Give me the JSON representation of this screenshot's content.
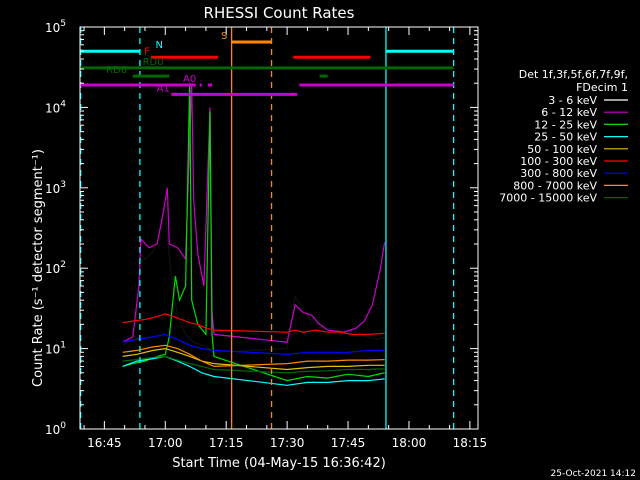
{
  "chart_data": {
    "type": "line",
    "title": "RHESSI Count Rates",
    "xlabel": "Start Time (04-May-15 16:36:42)",
    "ylabel": "Count Rate (s⁻¹ detector segment⁻¹)",
    "y_scale": "log",
    "xlim": [
      "16:39:00",
      "18:17:00"
    ],
    "ylim": [
      1,
      100000
    ],
    "x_ticks": [
      "16:45",
      "17:00",
      "17:15",
      "17:30",
      "17:45",
      "18:00",
      "18:15"
    ],
    "y_ticks": [
      {
        "base": "10",
        "exp": "0"
      },
      {
        "base": "10",
        "exp": "1"
      },
      {
        "base": "10",
        "exp": "2"
      },
      {
        "base": "10",
        "exp": "3"
      },
      {
        "base": "10",
        "exp": "4"
      },
      {
        "base": "10",
        "exp": "5"
      }
    ],
    "legend": {
      "placement": "right",
      "header": [
        "Det 1f,3f,5f,6f,7f,9f,",
        "FDecim 1"
      ],
      "entries": [
        {
          "label": "3 - 6 keV",
          "color": "#000000"
        },
        {
          "label": "6 - 12 keV",
          "color": "#cc00cc"
        },
        {
          "label": "12 - 25 keV",
          "color": "#00dd00"
        },
        {
          "label": "25 - 50 keV",
          "color": "#00ffff"
        },
        {
          "label": "50 - 100 keV",
          "color": "#e6c000"
        },
        {
          "label": "100 - 300 keV",
          "color": "#ff0000"
        },
        {
          "label": "300 - 800 keV",
          "color": "#0000ff"
        },
        {
          "label": "800 - 7000 keV",
          "color": "#ff8800"
        },
        {
          "label": "7000 - 15000 keV",
          "color": "#006600"
        }
      ]
    },
    "vlines": [
      {
        "t": "16:39:10",
        "color": "#00ffff",
        "style": "dashed"
      },
      {
        "t": "16:53:45",
        "color": "#00ffff",
        "style": "dashed"
      },
      {
        "t": "17:16:20",
        "color": "#ff8800",
        "style": "solid"
      },
      {
        "t": "17:26:10",
        "color": "#ff8800",
        "style": "dashed"
      },
      {
        "t": "17:54:20",
        "color": "#00ffff",
        "style": "solid"
      },
      {
        "t": "18:11:00",
        "color": "#00ffff",
        "style": "dashed"
      }
    ],
    "flag_bars": [
      {
        "label": "N",
        "color": "#00ffff",
        "y": 50000,
        "segments": [
          [
            "16:39:00",
            "16:53:45"
          ],
          [
            "17:54:20",
            "18:11:00"
          ]
        ],
        "label_at": "16:58:30"
      },
      {
        "label": "S",
        "color": "#ff8800",
        "y": 65000,
        "segments": [
          [
            "17:16:20",
            "17:26:10"
          ]
        ],
        "label_at": "17:14:30"
      },
      {
        "label": "F",
        "color": "#ff0000",
        "y": 42000,
        "segments": [
          [
            "16:56:30",
            "17:13:00"
          ],
          [
            "17:31:30",
            "17:50:30"
          ]
        ],
        "label_at": "16:55:30"
      },
      {
        "label": "RD0",
        "color": "#006600",
        "y": 31000,
        "segments": [
          [
            "16:39:00",
            "18:11:00"
          ]
        ],
        "label_at": "16:57:00"
      },
      {
        "label": "RD6",
        "color": "#006600",
        "y": 24500,
        "segments": [
          [
            "16:52:00",
            "17:01:00"
          ],
          [
            "17:38:00",
            "17:40:00"
          ]
        ],
        "label_at": "16:48:00"
      },
      {
        "label": "A0",
        "color": "#cc00cc",
        "y": 19000,
        "segments": [
          [
            "16:39:00",
            "17:07:30"
          ],
          [
            "17:08:30",
            "17:09:00"
          ],
          [
            "17:10:30",
            "17:11:30"
          ],
          [
            "17:33:00",
            "18:11:00"
          ]
        ],
        "label_at": "17:06:00"
      },
      {
        "label": "A1",
        "color": "#cc00cc",
        "y": 14500,
        "segments": [
          [
            "17:01:30",
            "17:32:30"
          ]
        ],
        "label_at": "16:59:30"
      }
    ],
    "series": [
      {
        "color": "#000000",
        "points": [
          [
            "16:49:30",
            11
          ],
          [
            "16:52:00",
            13
          ],
          [
            "16:53:30",
            40
          ],
          [
            "16:54:00",
            150
          ],
          [
            "16:55:00",
            130
          ],
          [
            "16:57:00",
            160
          ],
          [
            "16:58:30",
            250
          ],
          [
            "17:00:00",
            600
          ],
          [
            "17:00:30",
            250
          ],
          [
            "17:01:30",
            80
          ],
          [
            "17:03:00",
            25
          ],
          [
            "17:05:00",
            15
          ],
          [
            "17:07:00",
            12
          ],
          [
            "17:09:00",
            11
          ],
          [
            "17:11:00",
            10
          ],
          [
            "17:12:00",
            9
          ],
          [
            "17:30:00",
            10
          ],
          [
            "17:32:00",
            45
          ],
          [
            "17:34:00",
            30
          ],
          [
            "17:36:00",
            22
          ],
          [
            "17:38:00",
            20
          ],
          [
            "17:40:00",
            18
          ],
          [
            "17:43:00",
            17
          ],
          [
            "17:47:00",
            16
          ],
          [
            "17:50:00",
            14
          ],
          [
            "17:52:00",
            13
          ],
          [
            "17:54:00",
            14
          ]
        ]
      },
      {
        "color": "#cc00cc",
        "points": [
          [
            "16:49:30",
            12
          ],
          [
            "16:52:00",
            14
          ],
          [
            "16:53:30",
            60
          ],
          [
            "16:54:00",
            230
          ],
          [
            "16:56:00",
            180
          ],
          [
            "16:58:00",
            200
          ],
          [
            "16:59:30",
            500
          ],
          [
            "17:00:30",
            1000
          ],
          [
            "17:01:00",
            200
          ],
          [
            "17:03:00",
            180
          ],
          [
            "17:05:00",
            130
          ],
          [
            "17:06:30",
            20000
          ],
          [
            "17:07:00",
            700
          ],
          [
            "17:08:00",
            150
          ],
          [
            "17:09:30",
            60
          ],
          [
            "17:11:00",
            10000
          ],
          [
            "17:11:30",
            30
          ],
          [
            "17:12:00",
            15
          ],
          [
            "17:30:00",
            12
          ],
          [
            "17:32:00",
            35
          ],
          [
            "17:34:00",
            28
          ],
          [
            "17:36:00",
            26
          ],
          [
            "17:38:00",
            20
          ],
          [
            "17:40:00",
            17
          ],
          [
            "17:44:00",
            16
          ],
          [
            "17:47:00",
            18
          ],
          [
            "17:49:00",
            22
          ],
          [
            "17:51:00",
            35
          ],
          [
            "17:53:00",
            100
          ],
          [
            "17:54:00",
            210
          ]
        ]
      },
      {
        "color": "#00dd00",
        "points": [
          [
            "16:49:30",
            6
          ],
          [
            "16:52:00",
            6.5
          ],
          [
            "16:55:00",
            7
          ],
          [
            "16:58:00",
            8
          ],
          [
            "17:00:00",
            8.5
          ],
          [
            "17:01:00",
            14
          ],
          [
            "17:02:30",
            80
          ],
          [
            "17:03:30",
            40
          ],
          [
            "17:05:00",
            60
          ],
          [
            "17:06:00",
            20000
          ],
          [
            "17:06:30",
            40
          ],
          [
            "17:08:00",
            20
          ],
          [
            "17:10:00",
            15
          ],
          [
            "17:11:00",
            9000
          ],
          [
            "17:11:30",
            15
          ],
          [
            "17:12:00",
            8
          ],
          [
            "17:30:00",
            4
          ],
          [
            "17:35:00",
            4.5
          ],
          [
            "17:40:00",
            4.3
          ],
          [
            "17:45:00",
            4.8
          ],
          [
            "17:50:00",
            4.5
          ],
          [
            "17:54:00",
            5
          ]
        ]
      },
      {
        "color": "#00ffff",
        "points": [
          [
            "16:49:30",
            6
          ],
          [
            "16:53:00",
            7
          ],
          [
            "16:57:00",
            7.5
          ],
          [
            "17:00:00",
            8
          ],
          [
            "17:03:00",
            7
          ],
          [
            "17:06:00",
            6
          ],
          [
            "17:09:00",
            5
          ],
          [
            "17:12:00",
            4.5
          ],
          [
            "17:30:00",
            3.5
          ],
          [
            "17:35:00",
            3.8
          ],
          [
            "17:40:00",
            3.8
          ],
          [
            "17:45:00",
            4
          ],
          [
            "17:50:00",
            4
          ],
          [
            "17:54:00",
            4.2
          ]
        ]
      },
      {
        "color": "#e6c000",
        "points": [
          [
            "16:49:30",
            8
          ],
          [
            "16:53:00",
            8.5
          ],
          [
            "16:57:00",
            9.5
          ],
          [
            "17:00:00",
            10
          ],
          [
            "17:03:00",
            9
          ],
          [
            "17:06:00",
            8
          ],
          [
            "17:09:00",
            7
          ],
          [
            "17:12:00",
            6.5
          ],
          [
            "17:30:00",
            5.5
          ],
          [
            "17:35:00",
            5.8
          ],
          [
            "17:40:00",
            6
          ],
          [
            "17:45:00",
            6
          ],
          [
            "17:50:00",
            6.2
          ],
          [
            "17:54:00",
            6.2
          ]
        ]
      },
      {
        "color": "#ff0000",
        "points": [
          [
            "16:49:30",
            21
          ],
          [
            "16:52:00",
            22
          ],
          [
            "16:55:00",
            23
          ],
          [
            "16:58:00",
            25
          ],
          [
            "17:00:00",
            27
          ],
          [
            "17:02:00",
            25
          ],
          [
            "17:04:00",
            23
          ],
          [
            "17:06:00",
            21
          ],
          [
            "17:08:00",
            20
          ],
          [
            "17:10:00",
            18
          ],
          [
            "17:12:00",
            17
          ],
          [
            "17:30:00",
            16
          ],
          [
            "17:32:00",
            17
          ],
          [
            "17:34:00",
            16
          ],
          [
            "17:37:00",
            17
          ],
          [
            "17:40:00",
            16
          ],
          [
            "17:43:00",
            16
          ],
          [
            "17:46:00",
            15
          ],
          [
            "17:50:00",
            15
          ],
          [
            "17:54:00",
            15.5
          ]
        ]
      },
      {
        "color": "#0000ff",
        "points": [
          [
            "16:49:30",
            12
          ],
          [
            "16:53:00",
            13
          ],
          [
            "16:57:00",
            14
          ],
          [
            "17:00:00",
            15
          ],
          [
            "17:03:00",
            13
          ],
          [
            "17:06:00",
            11
          ],
          [
            "17:09:00",
            10
          ],
          [
            "17:12:00",
            9.5
          ],
          [
            "17:30:00",
            8.5
          ],
          [
            "17:35:00",
            9
          ],
          [
            "17:40:00",
            9
          ],
          [
            "17:45:00",
            9
          ],
          [
            "17:50:00",
            9.5
          ],
          [
            "17:54:00",
            9.5
          ]
        ]
      },
      {
        "color": "#ff8800",
        "points": [
          [
            "16:49:30",
            9
          ],
          [
            "16:53:00",
            9.5
          ],
          [
            "16:57:00",
            10.5
          ],
          [
            "17:00:00",
            11
          ],
          [
            "17:03:00",
            10
          ],
          [
            "17:06:00",
            8.5
          ],
          [
            "17:09:00",
            7
          ],
          [
            "17:12:00",
            6
          ],
          [
            "17:30:00",
            6.5
          ],
          [
            "17:35:00",
            7
          ],
          [
            "17:40:00",
            7
          ],
          [
            "17:45:00",
            7.2
          ],
          [
            "17:50:00",
            7.2
          ],
          [
            "17:54:00",
            7.3
          ]
        ]
      },
      {
        "color": "#006600",
        "points": [
          [
            "16:49:30",
            7
          ],
          [
            "16:53:00",
            7.3
          ],
          [
            "16:57:00",
            7.8
          ],
          [
            "17:00:00",
            8
          ],
          [
            "17:03:00",
            7.2
          ],
          [
            "17:06:00",
            6.5
          ],
          [
            "17:09:00",
            6
          ],
          [
            "17:12:00",
            5.5
          ],
          [
            "17:30:00",
            5
          ],
          [
            "17:35:00",
            5.2
          ],
          [
            "17:40:00",
            5.3
          ],
          [
            "17:45:00",
            5.5
          ],
          [
            "17:50:00",
            5.5
          ],
          [
            "17:54:00",
            5.6
          ]
        ]
      }
    ],
    "footer_stamp": "25-Oct-2021 14:12"
  }
}
